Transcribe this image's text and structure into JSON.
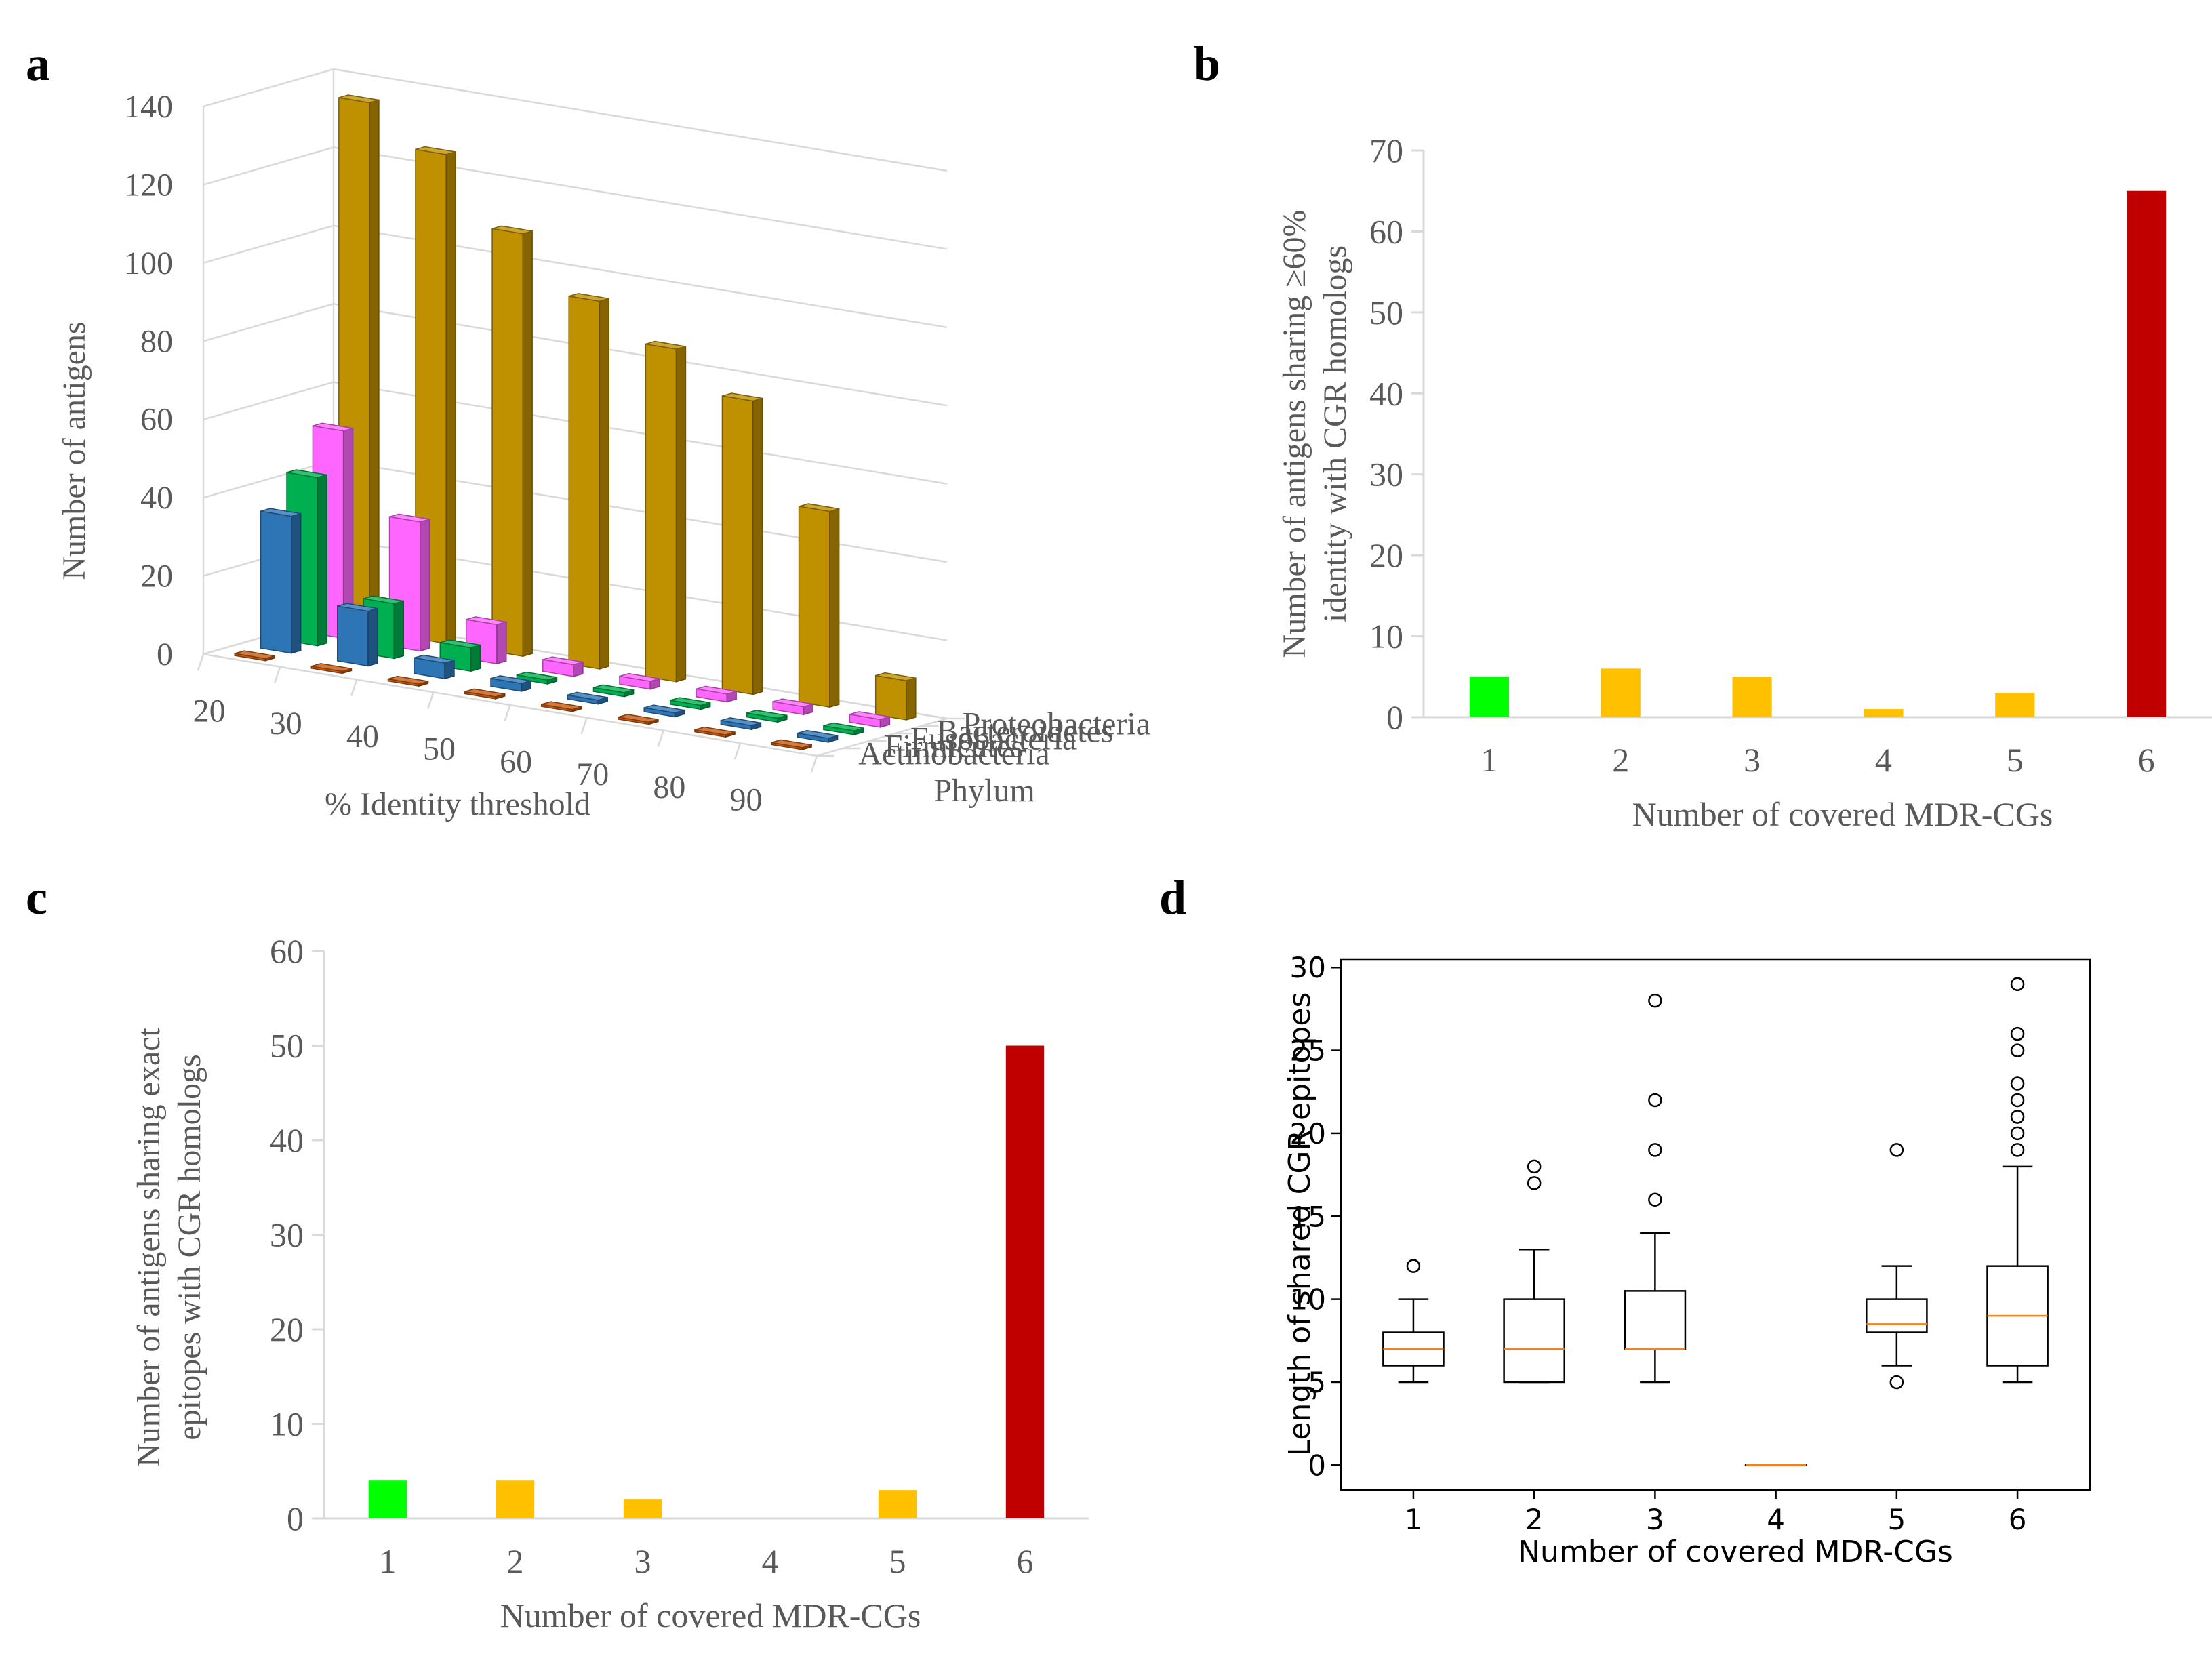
{
  "panel_letters": [
    "a",
    "b",
    "c",
    "d"
  ],
  "chart_data": [
    {
      "panel": "a",
      "type": "bar",
      "subtype": "3d-bar",
      "title": "",
      "xlabel": "% Identity threshold",
      "ylabel": "Number of antigens",
      "zlabel": "Phylum",
      "categories": [
        "20",
        "30",
        "40",
        "50",
        "60",
        "70",
        "80",
        "90"
      ],
      "ylim": [
        0,
        140
      ],
      "yticks": [
        "0",
        "20",
        "40",
        "60",
        "80",
        "100",
        "120",
        "140"
      ],
      "series": [
        {
          "name": "Actinobacteria",
          "color": "#C55A11",
          "values": [
            0,
            0,
            0,
            0,
            0,
            0,
            0,
            0
          ]
        },
        {
          "name": "Firmicutes",
          "color": "#2E75B6",
          "values": [
            35,
            14,
            4,
            2,
            1,
            1,
            1,
            1
          ]
        },
        {
          "name": "Fusobacteria",
          "color": "#00B050",
          "values": [
            43,
            14,
            6,
            1,
            1,
            1,
            1,
            1
          ]
        },
        {
          "name": "Bacteroidetes",
          "color": "#FF66FF",
          "values": [
            53,
            33,
            10,
            3,
            2,
            2,
            2,
            2
          ]
        },
        {
          "name": "Proteobacteria",
          "color": "#BF9000",
          "values": [
            135,
            125,
            108,
            94,
            85,
            75,
            50,
            10
          ]
        }
      ]
    },
    {
      "panel": "b",
      "type": "bar",
      "title": "",
      "xlabel": "Number of covered MDR-CGs",
      "ylabel": "Number of antigens sharing ≥60% identity with CGR homologs",
      "ylabel_lines": [
        "Number of antigens sharing ≥60%",
        "identity with CGR homologs"
      ],
      "categories": [
        "1",
        "2",
        "3",
        "4",
        "5",
        "6"
      ],
      "values": [
        5,
        6,
        5,
        1,
        3,
        65
      ],
      "colors": [
        "#00FF00",
        "#FFC000",
        "#FFC000",
        "#FFC000",
        "#FFC000",
        "#C00000"
      ],
      "ylim": [
        0,
        70
      ],
      "yticks": [
        "0",
        "10",
        "20",
        "30",
        "40",
        "50",
        "60",
        "70"
      ]
    },
    {
      "panel": "c",
      "type": "bar",
      "title": "",
      "xlabel": "Number of covered MDR-CGs",
      "ylabel": "Number of antigens sharing exact epitopes with CGR homologs",
      "ylabel_lines": [
        "Number of antigens sharing exact",
        "epitopes with CGR homologs"
      ],
      "categories": [
        "1",
        "2",
        "3",
        "4",
        "5",
        "6"
      ],
      "values": [
        4,
        4,
        2,
        0,
        3,
        50
      ],
      "colors": [
        "#00FF00",
        "#FFC000",
        "#FFC000",
        "#FFC000",
        "#FFC000",
        "#C00000"
      ],
      "ylim": [
        0,
        60
      ],
      "yticks": [
        "0",
        "10",
        "20",
        "30",
        "40",
        "50",
        "60"
      ]
    },
    {
      "panel": "d",
      "type": "box",
      "title": "",
      "xlabel": "Number of covered MDR-CGs",
      "ylabel": "Length of shared CGR epitopes",
      "categories": [
        "1",
        "2",
        "3",
        "4",
        "5",
        "6"
      ],
      "ylim": [
        -1.5,
        30.5
      ],
      "yticks": [
        "0",
        "5",
        "10",
        "15",
        "20",
        "25",
        "30"
      ],
      "boxes": [
        {
          "whisker_low": 5,
          "q1": 6,
          "median": 7,
          "q3": 8,
          "whisker_high": 10,
          "outliers": [
            12
          ]
        },
        {
          "whisker_low": 5,
          "q1": 5,
          "median": 7,
          "q3": 10,
          "whisker_high": 13,
          "outliers": [
            17,
            18
          ]
        },
        {
          "whisker_low": 5,
          "q1": 7,
          "median": 7,
          "q3": 10.5,
          "whisker_high": 14,
          "outliers": [
            16,
            19,
            22,
            28
          ]
        },
        {
          "whisker_low": 0,
          "q1": 0,
          "median": 0,
          "q3": 0,
          "whisker_high": 0,
          "outliers": []
        },
        {
          "whisker_low": 6,
          "q1": 8,
          "median": 8.5,
          "q3": 10,
          "whisker_high": 12,
          "outliers": [
            5,
            19
          ]
        },
        {
          "whisker_low": 5,
          "q1": 6,
          "median": 9,
          "q3": 12,
          "whisker_high": 18,
          "outliers": [
            19,
            20,
            21,
            22,
            23,
            25,
            26,
            29
          ]
        }
      ],
      "median_color": "#FF7F0E"
    }
  ]
}
